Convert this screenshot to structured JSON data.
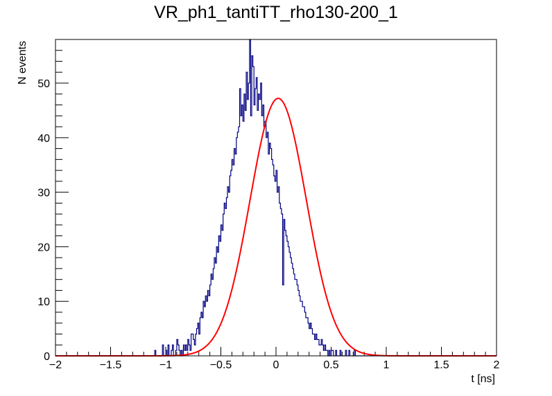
{
  "chart_data": {
    "type": "histogram",
    "title": "VR_ph1_tantiTT_rho130-200_1",
    "xlabel": "t [ns]",
    "ylabel": "N events",
    "xlim": [
      -2,
      2
    ],
    "ylim": [
      0,
      58
    ],
    "x_ticks": [
      -2,
      -1.5,
      -1,
      -0.5,
      0,
      0.5,
      1,
      1.5,
      2
    ],
    "x_tick_labels": [
      "−2",
      "−1.5",
      "−1",
      "−0.5",
      "0",
      "0.5",
      "1",
      "1.5",
      "2"
    ],
    "y_ticks": [
      0,
      10,
      20,
      30,
      40,
      50
    ],
    "y_tick_labels": [
      "0",
      "10",
      "20",
      "30",
      "40",
      "50"
    ],
    "bin_width": 0.01,
    "histogram_color": "#000080",
    "fit_color": "#ff0000",
    "histogram": {
      "x_start": -1.1,
      "counts": [
        1,
        0,
        0,
        0,
        0,
        0,
        0,
        2,
        0,
        0,
        1,
        0,
        2,
        0,
        0,
        1,
        2,
        0,
        0,
        1,
        3,
        2,
        1,
        0,
        1,
        0,
        2,
        1,
        2,
        1,
        3,
        2,
        1,
        4,
        4,
        3,
        2,
        4,
        5,
        6,
        4,
        7,
        8,
        7,
        10,
        9,
        11,
        10,
        12,
        11,
        13,
        15,
        14,
        16,
        18,
        17,
        20,
        19,
        22,
        21,
        24,
        23,
        26,
        28,
        27,
        29,
        31,
        30,
        33,
        34,
        36,
        35,
        38,
        37,
        40,
        41,
        42,
        49,
        44,
        46,
        43,
        48,
        45,
        52,
        47,
        50,
        58,
        44,
        55,
        53,
        46,
        49,
        51,
        45,
        48,
        47,
        50,
        44,
        46,
        42,
        43,
        40,
        41,
        37,
        39,
        38,
        36,
        35,
        33,
        32,
        34,
        30,
        31,
        28,
        27,
        26,
        13,
        25,
        23,
        22,
        21,
        20,
        19,
        18,
        17,
        16,
        15,
        14,
        14,
        13,
        12,
        11,
        10,
        10,
        9,
        9,
        8,
        7,
        7,
        6,
        5,
        6,
        5,
        4,
        4,
        3,
        4,
        3,
        3,
        2,
        2,
        3,
        2,
        1,
        2,
        1,
        1,
        0,
        1,
        0,
        1,
        1,
        0,
        0,
        1,
        0,
        0,
        0,
        1,
        0,
        0,
        0,
        0,
        1,
        0,
        0,
        1,
        0,
        0,
        0,
        0,
        1
      ]
    },
    "fit": {
      "type": "gaussian",
      "amplitude": 47.2,
      "mean": 0.02,
      "sigma": 0.255
    }
  }
}
